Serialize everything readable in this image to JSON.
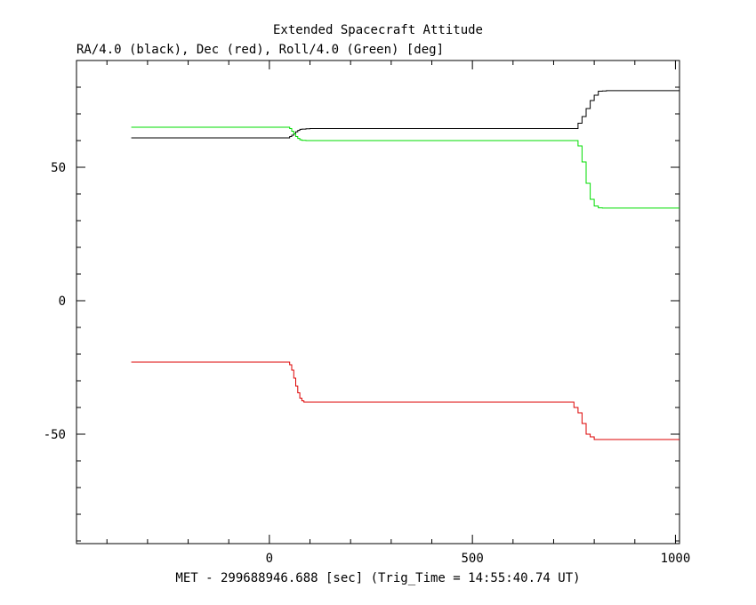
{
  "chart_data": {
    "type": "line",
    "title": "Extended Spacecraft Attitude",
    "subtitle": "RA/4.0 (black), Dec (red), Roll/4.0 (Green) [deg]",
    "xlabel": "MET - 299688946.688 [sec] (Trig_Time = 14:55:40.74 UT)",
    "ylabel": "",
    "xlim": [
      -475,
      1010
    ],
    "ylim": [
      -91,
      90
    ],
    "x_ticks": [
      0,
      500,
      1000
    ],
    "x_tick_labels": [
      "0",
      "500",
      "1000"
    ],
    "y_ticks": [
      50,
      0,
      -50
    ],
    "y_tick_labels": [
      "50",
      "0",
      "-50"
    ],
    "grid": false,
    "series": [
      {
        "name": "RA/4.0",
        "color": "#000000",
        "x": [
          -340,
          40,
          50,
          55,
          60,
          65,
          70,
          75,
          80,
          90,
          100,
          750,
          760,
          770,
          780,
          790,
          800,
          810,
          820,
          830,
          1010
        ],
        "y": [
          61,
          61,
          61.5,
          62,
          62.6,
          63.3,
          63.8,
          64.2,
          64.3,
          64.4,
          64.5,
          64.5,
          66.5,
          69,
          72,
          75,
          77,
          78.5,
          78.6,
          78.7,
          78.7
        ]
      },
      {
        "name": "Dec",
        "color": "#dd0000",
        "x": [
          -340,
          45,
          50,
          55,
          60,
          65,
          70,
          75,
          80,
          85,
          90,
          740,
          750,
          760,
          770,
          780,
          790,
          800,
          1010
        ],
        "y": [
          -23,
          -23,
          -24,
          -26,
          -29,
          -32,
          -34.5,
          -36.5,
          -37.5,
          -38,
          -38,
          -38,
          -40,
          -42,
          -46,
          -50,
          -51,
          -52,
          -52
        ]
      },
      {
        "name": "Roll/4.0",
        "color": "#00dd00",
        "x": [
          -340,
          40,
          50,
          55,
          60,
          65,
          70,
          75,
          80,
          90,
          100,
          750,
          760,
          770,
          780,
          790,
          800,
          810,
          820,
          830,
          1010
        ],
        "y": [
          65,
          65,
          64.5,
          63.5,
          62.5,
          61.5,
          60.8,
          60.3,
          60.1,
          60,
          60,
          60,
          58,
          52,
          44,
          38,
          35.5,
          34.8,
          34.7,
          34.7,
          34.7
        ]
      }
    ]
  }
}
